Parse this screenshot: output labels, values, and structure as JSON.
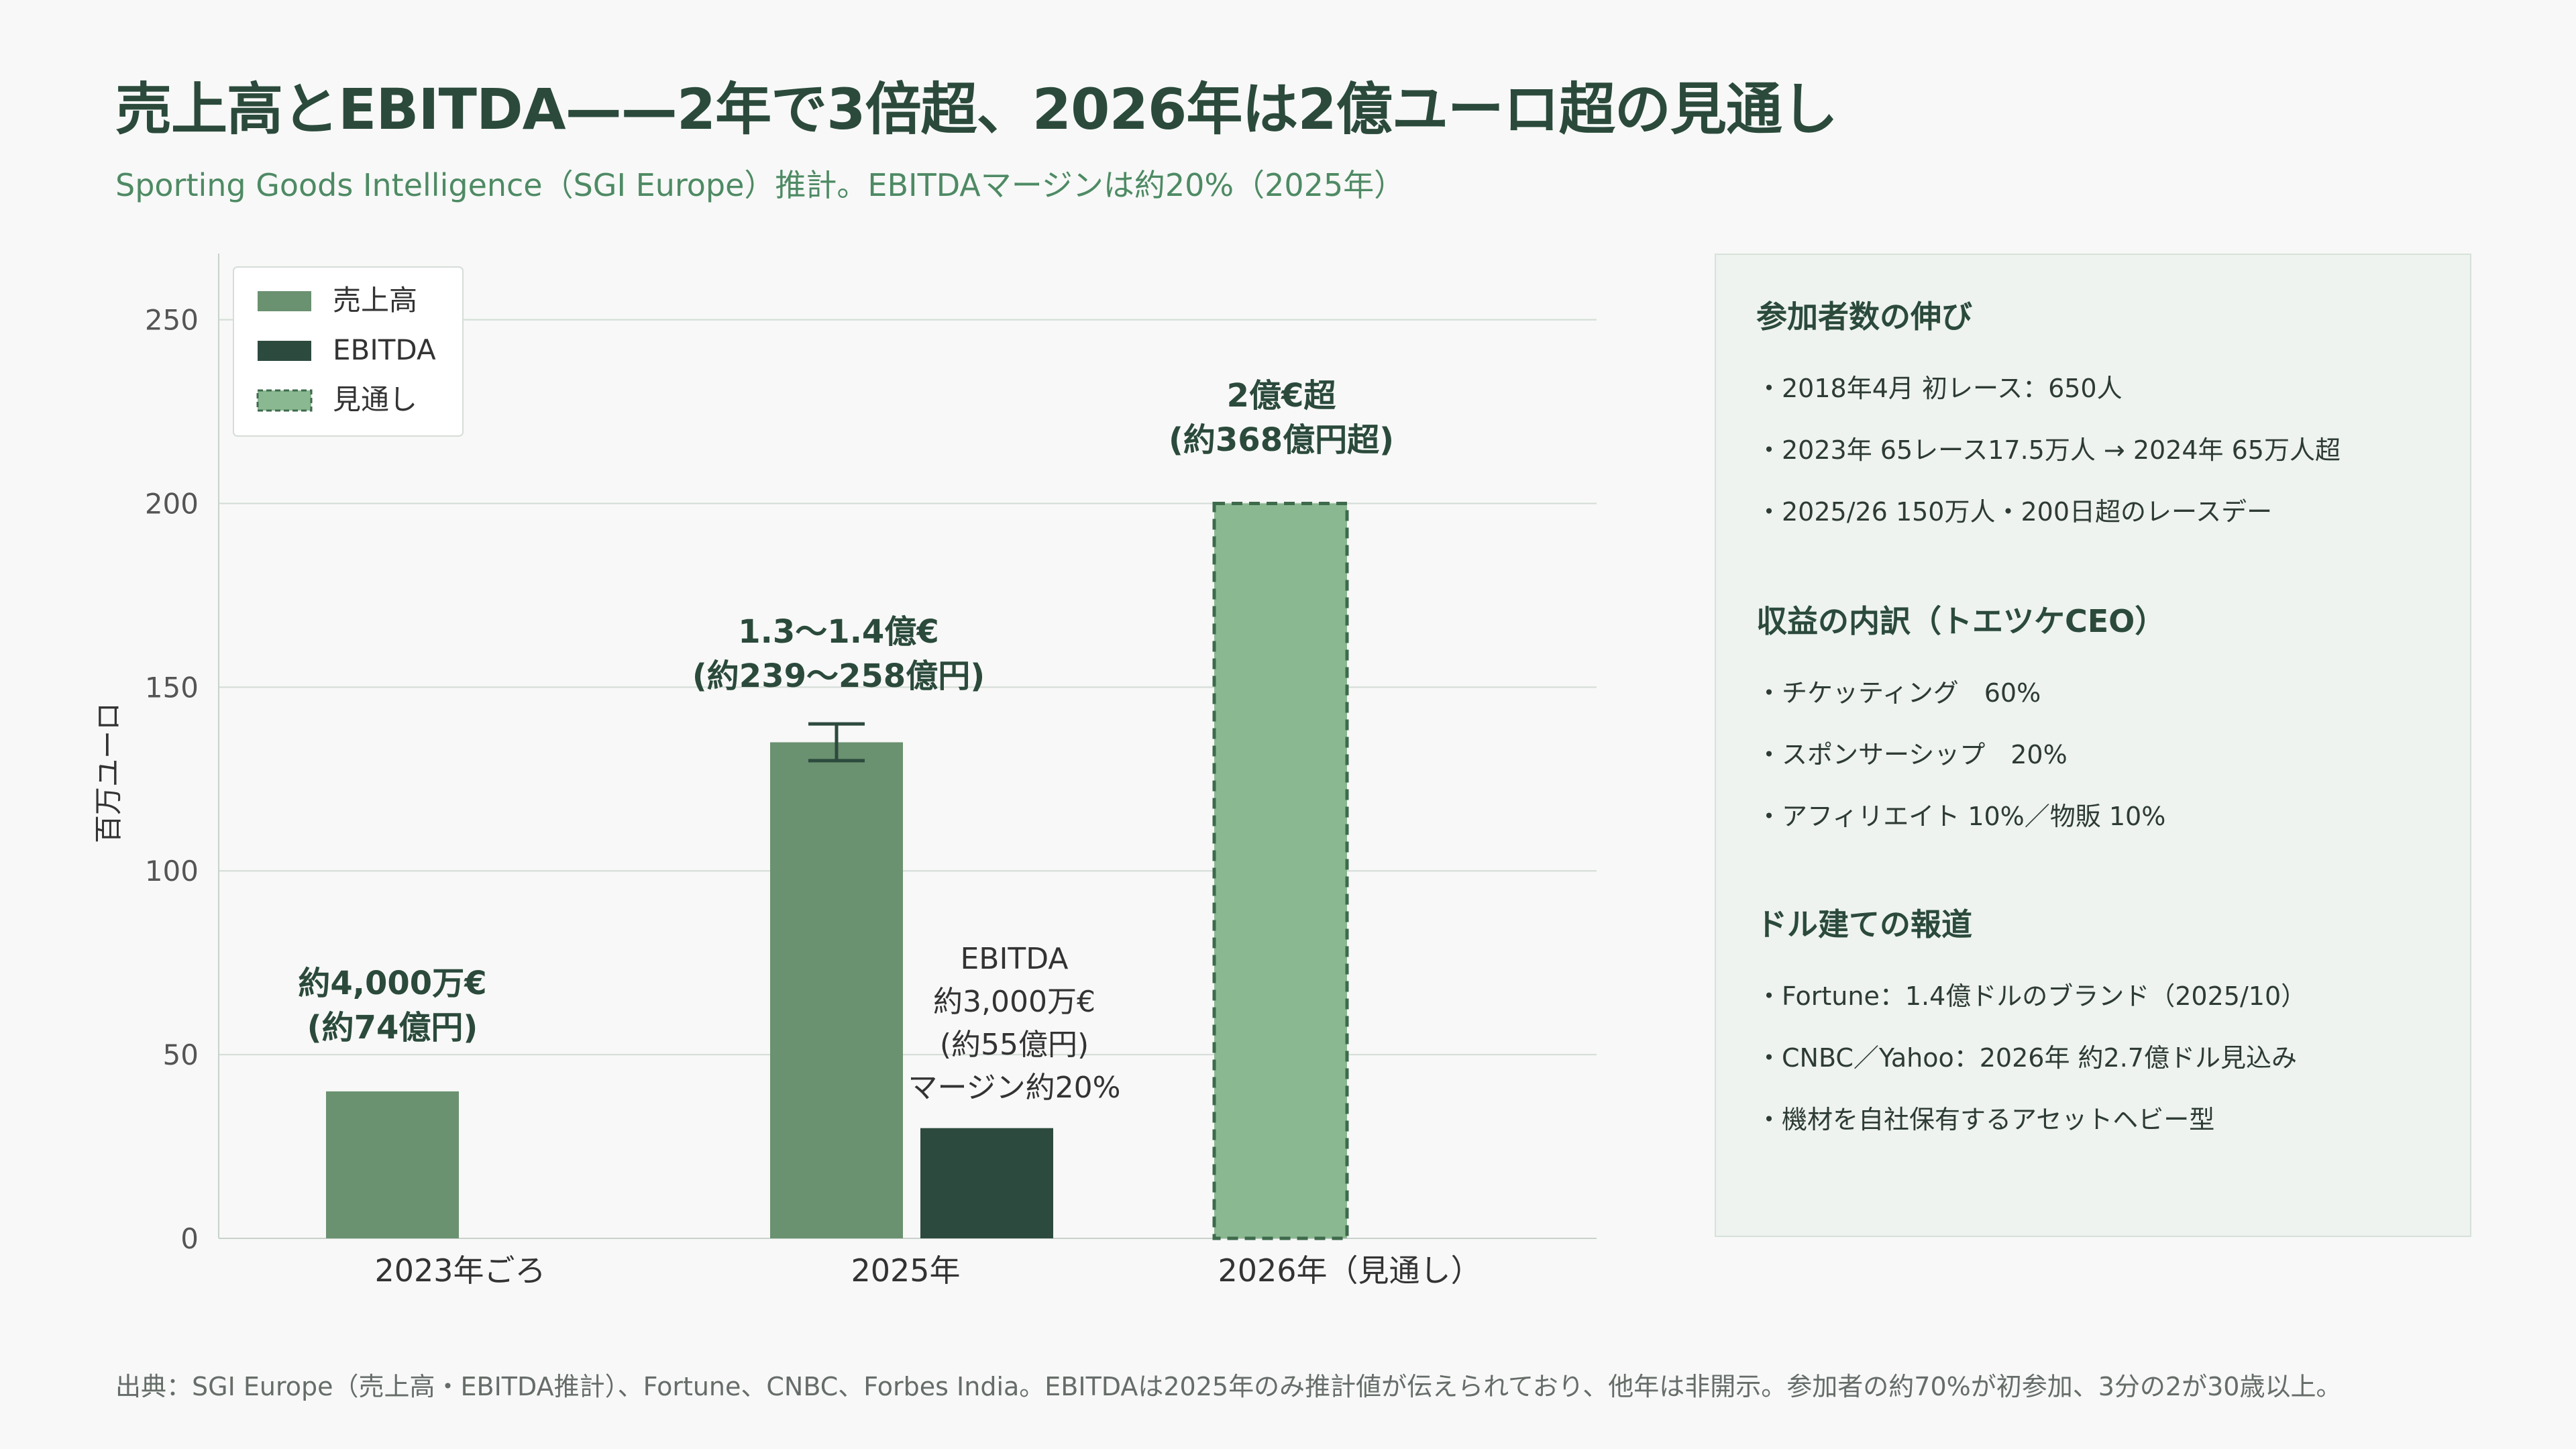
{
  "title": "売上高とEBITDA——2年で3倍超、2026年は2億ユーロ超の見通し",
  "subtitle": "Sporting Goods Intelligence（SGI Europe）推計。EBITDAマージンは約20%（2025年）",
  "colors": {
    "revenue": "#6a9170",
    "ebitda": "#2d4a3e",
    "projection": "#8ab891",
    "projection_border": "#3e6a4c",
    "title": "#2b4a3c",
    "subtitle": "#4e8a64"
  },
  "chart_data": {
    "type": "bar",
    "ylabel": "百万ユーロ",
    "ylim": [
      0,
      268
    ],
    "yticks": [
      0,
      50,
      100,
      150,
      200,
      250
    ],
    "grid": true,
    "legend_position": "top-left",
    "legend": [
      {
        "label": "売上高",
        "style": "revenue"
      },
      {
        "label": "EBITDA",
        "style": "ebitda"
      },
      {
        "label": "見通し",
        "style": "projection"
      }
    ],
    "categories": [
      "2023年ごろ",
      "2025年",
      "2026年（見通し）"
    ],
    "series": [
      {
        "name": "売上高",
        "values": [
          40,
          135,
          null
        ],
        "error_range": [
          null,
          [
            130,
            140
          ],
          null
        ]
      },
      {
        "name": "EBITDA",
        "values": [
          null,
          30,
          null
        ]
      },
      {
        "name": "見通し",
        "values": [
          null,
          null,
          200
        ]
      }
    ],
    "annotations": {
      "a2023": [
        "約4,000万€",
        "(約74億円)"
      ],
      "a2025": [
        "1.3〜1.4億€",
        "(約239〜258億円)"
      ],
      "a2026": [
        "2億€超",
        "(約368億円超)"
      ],
      "ebitda": [
        "EBITDA",
        "約3,000万€",
        "(約55億円)",
        "マージン約20%"
      ]
    }
  },
  "side": {
    "participants": {
      "heading": "参加者数の伸び",
      "items": [
        "・2018年4月 初レース：650人",
        "・2023年 65レース17.5万人 → 2024年 65万人超",
        "・2025/26 150万人・200日超のレースデー"
      ]
    },
    "revenue_mix": {
      "heading": "収益の内訳（トエツケCEO）",
      "items": [
        "・チケッティング　60%",
        "・スポンサーシップ　20%",
        "・アフィリエイト 10%／物販 10%"
      ]
    },
    "dollar_reports": {
      "heading": "ドル建ての報道",
      "items": [
        "・Fortune：1.4億ドルのブランド（2025/10）",
        "・CNBC／Yahoo：2026年 約2.7億ドル見込み",
        "・機材を自社保有するアセットヘビー型"
      ]
    }
  },
  "footer": "出典：SGI Europe（売上高・EBITDA推計）、Fortune、CNBC、Forbes India。EBITDAは2025年のみ推計値が伝えられており、他年は非開示。参加者の約70%が初参加、3分の2が30歳以上。"
}
